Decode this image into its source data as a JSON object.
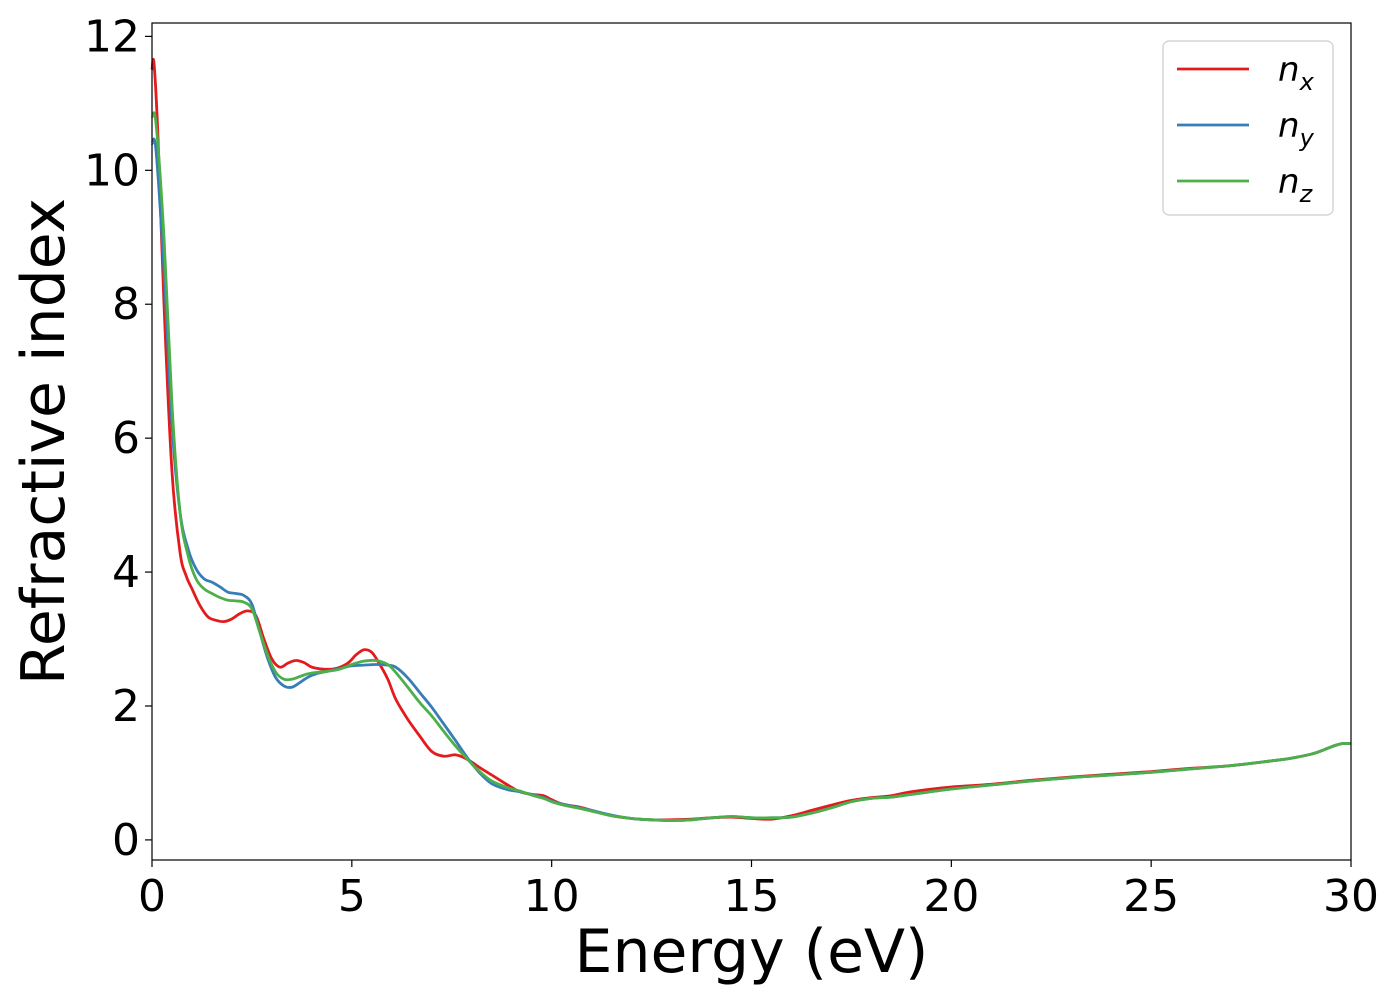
{
  "chart_data": {
    "type": "line",
    "xlabel": "Energy (eV)",
    "ylabel": "Refractive index",
    "xlim": [
      0,
      30
    ],
    "ylim": [
      -0.3,
      12.2
    ],
    "xticks": [
      0,
      5,
      10,
      15,
      20,
      25,
      30
    ],
    "xtick_labels": [
      "0",
      "5",
      "10",
      "15",
      "20",
      "25",
      "30"
    ],
    "yticks": [
      0,
      2,
      4,
      6,
      8,
      10,
      12
    ],
    "ytick_labels": [
      "0",
      "2",
      "4",
      "6",
      "8",
      "10",
      "12"
    ],
    "grid": false,
    "legend_position": "top-right",
    "series": [
      {
        "name": "n",
        "subscript": "x",
        "color": "#e41a1c",
        "x": [
          0,
          0.05,
          0.15,
          0.3,
          0.5,
          0.7,
          0.85,
          1.0,
          1.2,
          1.4,
          1.6,
          1.8,
          2.0,
          2.2,
          2.4,
          2.6,
          2.8,
          3.0,
          3.2,
          3.4,
          3.6,
          3.8,
          4.0,
          4.3,
          4.6,
          4.9,
          5.1,
          5.3,
          5.5,
          5.7,
          5.9,
          6.1,
          6.4,
          6.7,
          7.0,
          7.3,
          7.6,
          7.9,
          8.2,
          8.5,
          8.9,
          9.2,
          9.5,
          9.8,
          10.0,
          10.3,
          10.7,
          11.0,
          11.5,
          12.0,
          12.5,
          13.0,
          13.5,
          14.0,
          14.5,
          15.0,
          15.5,
          16.0,
          16.5,
          17.0,
          17.5,
          18.0,
          18.5,
          19.0,
          20.0,
          21.0,
          22.0,
          23.0,
          24.0,
          25.0,
          26.0,
          27.0,
          28.0,
          28.5,
          29.0,
          29.3,
          29.6,
          29.8,
          30.0
        ],
        "values": [
          11.5,
          11.6,
          10.5,
          8.0,
          5.5,
          4.3,
          3.95,
          3.75,
          3.5,
          3.33,
          3.28,
          3.26,
          3.3,
          3.38,
          3.42,
          3.35,
          3.0,
          2.7,
          2.58,
          2.64,
          2.68,
          2.65,
          2.58,
          2.55,
          2.56,
          2.64,
          2.76,
          2.84,
          2.8,
          2.62,
          2.4,
          2.1,
          1.8,
          1.55,
          1.32,
          1.25,
          1.27,
          1.2,
          1.08,
          0.97,
          0.82,
          0.72,
          0.68,
          0.66,
          0.6,
          0.53,
          0.49,
          0.44,
          0.36,
          0.32,
          0.3,
          0.3,
          0.31,
          0.33,
          0.34,
          0.32,
          0.31,
          0.36,
          0.44,
          0.52,
          0.59,
          0.63,
          0.66,
          0.72,
          0.79,
          0.83,
          0.89,
          0.94,
          0.98,
          1.02,
          1.07,
          1.11,
          1.18,
          1.22,
          1.28,
          1.34,
          1.41,
          1.44,
          1.44
        ]
      },
      {
        "name": "n",
        "subscript": "y",
        "color": "#377eb8",
        "x": [
          0,
          0.1,
          0.3,
          0.5,
          0.7,
          0.9,
          1.1,
          1.3,
          1.5,
          1.7,
          1.9,
          2.1,
          2.3,
          2.5,
          2.7,
          2.9,
          3.1,
          3.3,
          3.5,
          3.7,
          3.9,
          4.1,
          4.4,
          4.7,
          5.0,
          5.3,
          5.6,
          5.9,
          6.1,
          6.4,
          6.7,
          7.0,
          7.3,
          7.6,
          7.9,
          8.2,
          8.5,
          8.9,
          9.2,
          9.5,
          9.8,
          10.0,
          10.3,
          10.7,
          11.0,
          11.5,
          12.0,
          12.5,
          13.0,
          13.5,
          14.0,
          14.5,
          15.0,
          15.5,
          16.0,
          16.5,
          17.0,
          17.5,
          18.0,
          18.5,
          19.0,
          20.0,
          21.0,
          22.0,
          23.0,
          24.0,
          25.0,
          26.0,
          27.0,
          28.0,
          28.5,
          29.0,
          29.3,
          29.6,
          29.8,
          30.0
        ],
        "values": [
          10.4,
          10.3,
          8.5,
          6.2,
          4.9,
          4.35,
          4.05,
          3.9,
          3.85,
          3.78,
          3.7,
          3.68,
          3.65,
          3.52,
          3.1,
          2.7,
          2.42,
          2.3,
          2.28,
          2.35,
          2.43,
          2.48,
          2.52,
          2.56,
          2.6,
          2.61,
          2.62,
          2.61,
          2.58,
          2.42,
          2.2,
          1.98,
          1.73,
          1.48,
          1.22,
          1.0,
          0.84,
          0.75,
          0.72,
          0.68,
          0.63,
          0.58,
          0.53,
          0.48,
          0.44,
          0.37,
          0.32,
          0.3,
          0.29,
          0.3,
          0.33,
          0.35,
          0.33,
          0.33,
          0.34,
          0.4,
          0.48,
          0.57,
          0.62,
          0.64,
          0.68,
          0.76,
          0.82,
          0.88,
          0.93,
          0.97,
          1.01,
          1.06,
          1.11,
          1.18,
          1.22,
          1.28,
          1.34,
          1.41,
          1.44,
          1.44
        ]
      },
      {
        "name": "n",
        "subscript": "z",
        "color": "#4daf4a",
        "x": [
          0,
          0.1,
          0.3,
          0.5,
          0.7,
          0.9,
          1.1,
          1.3,
          1.5,
          1.7,
          1.9,
          2.1,
          2.3,
          2.5,
          2.7,
          2.9,
          3.1,
          3.3,
          3.5,
          3.7,
          3.9,
          4.1,
          4.4,
          4.7,
          5.0,
          5.3,
          5.6,
          5.9,
          6.1,
          6.4,
          6.7,
          7.0,
          7.3,
          7.6,
          7.9,
          8.2,
          8.5,
          8.9,
          9.2,
          9.5,
          9.8,
          10.0,
          10.3,
          10.7,
          11.0,
          11.5,
          12.0,
          12.5,
          13.0,
          13.5,
          14.0,
          14.5,
          15.0,
          15.5,
          16.0,
          16.5,
          17.0,
          17.5,
          18.0,
          18.5,
          19.0,
          20.0,
          21.0,
          22.0,
          23.0,
          24.0,
          25.0,
          26.0,
          27.0,
          28.0,
          28.5,
          29.0,
          29.3,
          29.6,
          29.8,
          30.0
        ],
        "values": [
          10.8,
          10.7,
          9.0,
          6.5,
          4.9,
          4.25,
          3.9,
          3.75,
          3.68,
          3.62,
          3.58,
          3.57,
          3.55,
          3.45,
          3.1,
          2.75,
          2.5,
          2.4,
          2.4,
          2.44,
          2.48,
          2.5,
          2.52,
          2.55,
          2.62,
          2.67,
          2.68,
          2.62,
          2.5,
          2.28,
          2.05,
          1.85,
          1.62,
          1.4,
          1.2,
          1.02,
          0.88,
          0.78,
          0.73,
          0.67,
          0.62,
          0.57,
          0.52,
          0.47,
          0.43,
          0.36,
          0.32,
          0.3,
          0.29,
          0.3,
          0.33,
          0.35,
          0.33,
          0.33,
          0.34,
          0.4,
          0.48,
          0.57,
          0.62,
          0.64,
          0.68,
          0.76,
          0.82,
          0.88,
          0.93,
          0.97,
          1.01,
          1.06,
          1.11,
          1.18,
          1.22,
          1.28,
          1.34,
          1.41,
          1.44,
          1.44
        ]
      }
    ]
  }
}
